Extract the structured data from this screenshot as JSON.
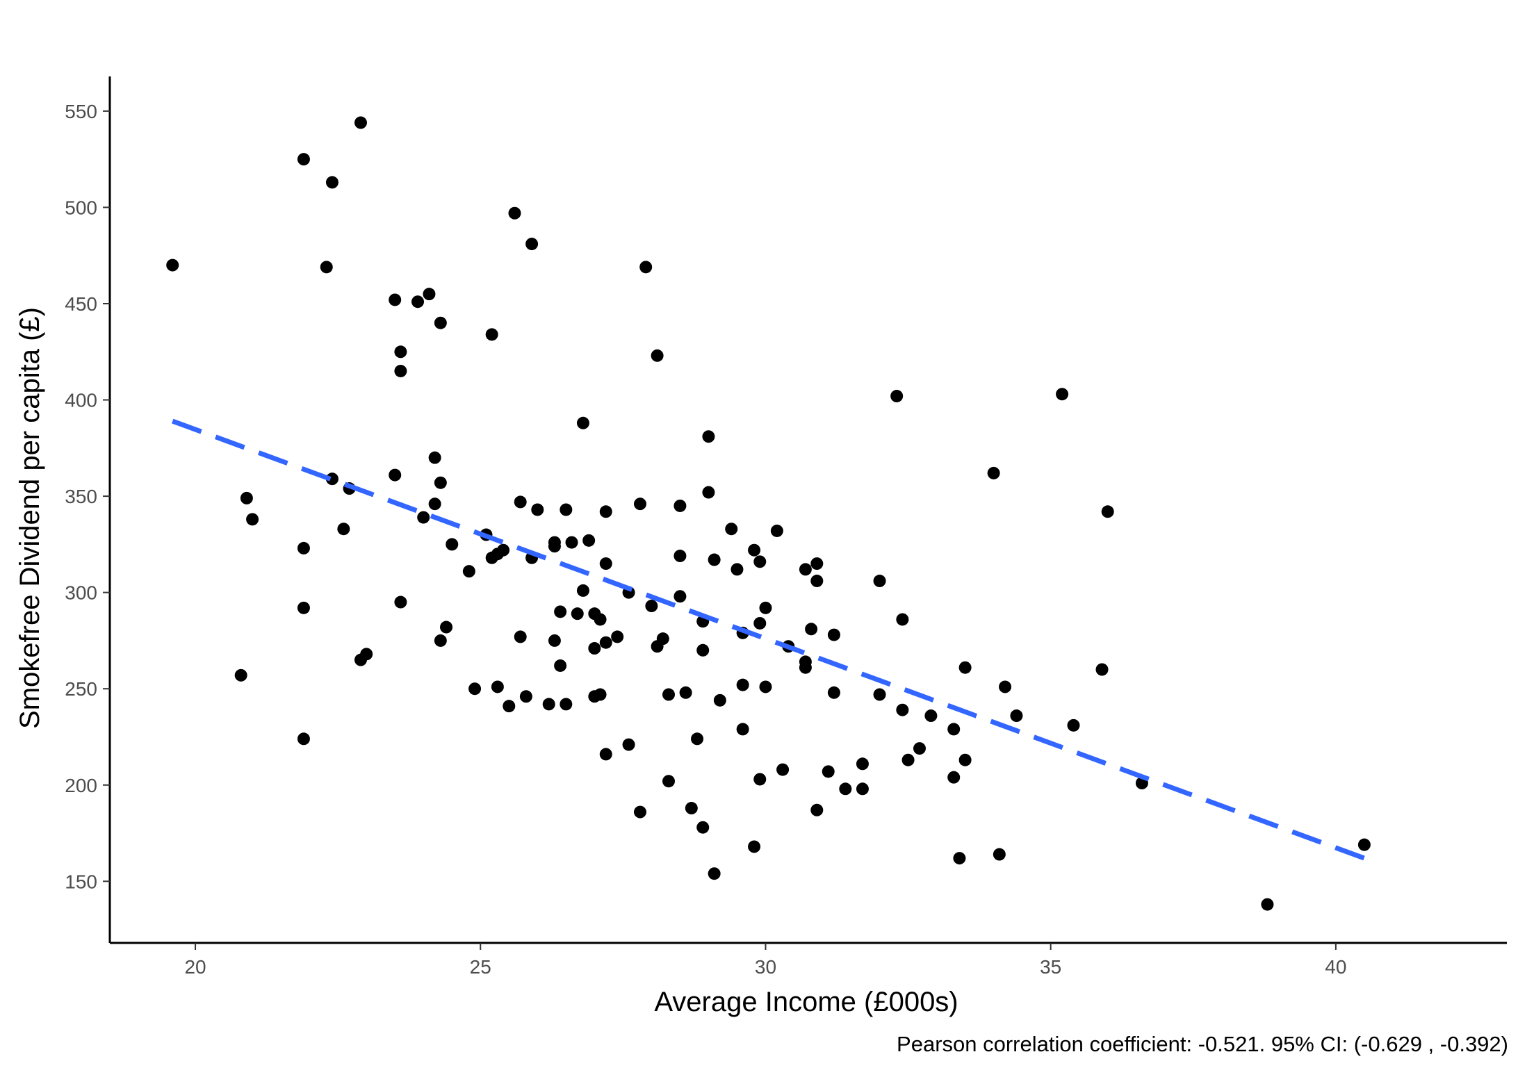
{
  "chart_data": {
    "type": "scatter",
    "title": "",
    "xlabel": "Average Income (£000s)",
    "ylabel": "Smokefree Dividend per capita (£)",
    "caption": "Pearson correlation coefficient: -0.521. 95% CI: (-0.629 , -0.392)",
    "xlim": [
      18.5,
      43
    ],
    "ylim": [
      118,
      568
    ],
    "xticks": [
      20,
      25,
      30,
      35,
      40
    ],
    "yticks": [
      150,
      200,
      250,
      300,
      350,
      400,
      450,
      500,
      550
    ],
    "grid": false,
    "legend": "none",
    "point_color": "#000000",
    "trend_color": "#3366FF",
    "trend_style": "dashed",
    "trend_line": {
      "x": [
        19.6,
        40.5
      ],
      "y": [
        389,
        162
      ]
    },
    "points": [
      {
        "x": 19.6,
        "y": 470
      },
      {
        "x": 20.8,
        "y": 257
      },
      {
        "x": 20.9,
        "y": 349
      },
      {
        "x": 21.0,
        "y": 338
      },
      {
        "x": 21.9,
        "y": 292
      },
      {
        "x": 21.9,
        "y": 224
      },
      {
        "x": 21.9,
        "y": 323
      },
      {
        "x": 21.9,
        "y": 525
      },
      {
        "x": 22.3,
        "y": 469
      },
      {
        "x": 22.4,
        "y": 359
      },
      {
        "x": 22.4,
        "y": 513
      },
      {
        "x": 22.6,
        "y": 333
      },
      {
        "x": 22.7,
        "y": 354
      },
      {
        "x": 22.9,
        "y": 265
      },
      {
        "x": 22.9,
        "y": 544
      },
      {
        "x": 23.0,
        "y": 268
      },
      {
        "x": 23.5,
        "y": 361
      },
      {
        "x": 23.5,
        "y": 452
      },
      {
        "x": 23.6,
        "y": 295
      },
      {
        "x": 23.6,
        "y": 425
      },
      {
        "x": 23.6,
        "y": 415
      },
      {
        "x": 23.9,
        "y": 451
      },
      {
        "x": 24.0,
        "y": 339
      },
      {
        "x": 24.1,
        "y": 455
      },
      {
        "x": 24.2,
        "y": 346
      },
      {
        "x": 24.2,
        "y": 370
      },
      {
        "x": 24.3,
        "y": 440
      },
      {
        "x": 24.3,
        "y": 357
      },
      {
        "x": 24.3,
        "y": 275
      },
      {
        "x": 24.4,
        "y": 282
      },
      {
        "x": 24.5,
        "y": 325
      },
      {
        "x": 24.8,
        "y": 311
      },
      {
        "x": 24.9,
        "y": 250
      },
      {
        "x": 25.1,
        "y": 330
      },
      {
        "x": 25.2,
        "y": 434
      },
      {
        "x": 25.2,
        "y": 318
      },
      {
        "x": 25.3,
        "y": 251
      },
      {
        "x": 25.3,
        "y": 320
      },
      {
        "x": 25.4,
        "y": 322
      },
      {
        "x": 25.5,
        "y": 241
      },
      {
        "x": 25.6,
        "y": 497
      },
      {
        "x": 25.7,
        "y": 277
      },
      {
        "x": 25.7,
        "y": 347
      },
      {
        "x": 25.8,
        "y": 246
      },
      {
        "x": 25.9,
        "y": 318
      },
      {
        "x": 25.9,
        "y": 481
      },
      {
        "x": 26.0,
        "y": 343
      },
      {
        "x": 26.2,
        "y": 242
      },
      {
        "x": 26.3,
        "y": 326
      },
      {
        "x": 26.3,
        "y": 324
      },
      {
        "x": 26.3,
        "y": 275
      },
      {
        "x": 26.4,
        "y": 290
      },
      {
        "x": 26.4,
        "y": 262
      },
      {
        "x": 26.5,
        "y": 242
      },
      {
        "x": 26.5,
        "y": 343
      },
      {
        "x": 26.6,
        "y": 326
      },
      {
        "x": 26.7,
        "y": 289
      },
      {
        "x": 26.8,
        "y": 301
      },
      {
        "x": 26.8,
        "y": 388
      },
      {
        "x": 26.9,
        "y": 327
      },
      {
        "x": 27.0,
        "y": 289
      },
      {
        "x": 27.0,
        "y": 271
      },
      {
        "x": 27.0,
        "y": 246
      },
      {
        "x": 27.1,
        "y": 286
      },
      {
        "x": 27.1,
        "y": 247
      },
      {
        "x": 27.2,
        "y": 342
      },
      {
        "x": 27.2,
        "y": 315
      },
      {
        "x": 27.2,
        "y": 274
      },
      {
        "x": 27.2,
        "y": 216
      },
      {
        "x": 27.4,
        "y": 277
      },
      {
        "x": 27.6,
        "y": 300
      },
      {
        "x": 27.6,
        "y": 221
      },
      {
        "x": 27.8,
        "y": 346
      },
      {
        "x": 27.8,
        "y": 186
      },
      {
        "x": 27.9,
        "y": 469
      },
      {
        "x": 28.0,
        "y": 293
      },
      {
        "x": 28.1,
        "y": 272
      },
      {
        "x": 28.1,
        "y": 423
      },
      {
        "x": 28.2,
        "y": 276
      },
      {
        "x": 28.3,
        "y": 202
      },
      {
        "x": 28.3,
        "y": 247
      },
      {
        "x": 28.5,
        "y": 345
      },
      {
        "x": 28.5,
        "y": 319
      },
      {
        "x": 28.5,
        "y": 298
      },
      {
        "x": 28.6,
        "y": 248
      },
      {
        "x": 28.7,
        "y": 188
      },
      {
        "x": 28.8,
        "y": 224
      },
      {
        "x": 28.9,
        "y": 178
      },
      {
        "x": 28.9,
        "y": 285
      },
      {
        "x": 28.9,
        "y": 270
      },
      {
        "x": 29.0,
        "y": 381
      },
      {
        "x": 29.0,
        "y": 352
      },
      {
        "x": 29.1,
        "y": 317
      },
      {
        "x": 29.1,
        "y": 154
      },
      {
        "x": 29.2,
        "y": 244
      },
      {
        "x": 29.4,
        "y": 333
      },
      {
        "x": 29.5,
        "y": 312
      },
      {
        "x": 29.6,
        "y": 229
      },
      {
        "x": 29.6,
        "y": 252
      },
      {
        "x": 29.6,
        "y": 279
      },
      {
        "x": 29.8,
        "y": 322
      },
      {
        "x": 29.9,
        "y": 316
      },
      {
        "x": 29.9,
        "y": 284
      },
      {
        "x": 29.9,
        "y": 203
      },
      {
        "x": 29.8,
        "y": 168
      },
      {
        "x": 30.0,
        "y": 292
      },
      {
        "x": 30.0,
        "y": 251
      },
      {
        "x": 30.2,
        "y": 332
      },
      {
        "x": 30.3,
        "y": 208
      },
      {
        "x": 30.4,
        "y": 272
      },
      {
        "x": 30.7,
        "y": 312
      },
      {
        "x": 30.7,
        "y": 261
      },
      {
        "x": 30.7,
        "y": 264
      },
      {
        "x": 30.8,
        "y": 281
      },
      {
        "x": 30.9,
        "y": 315
      },
      {
        "x": 30.9,
        "y": 306
      },
      {
        "x": 30.9,
        "y": 187
      },
      {
        "x": 31.1,
        "y": 207
      },
      {
        "x": 31.2,
        "y": 278
      },
      {
        "x": 31.2,
        "y": 248
      },
      {
        "x": 31.4,
        "y": 198
      },
      {
        "x": 31.7,
        "y": 211
      },
      {
        "x": 31.7,
        "y": 198
      },
      {
        "x": 32.0,
        "y": 247
      },
      {
        "x": 32.0,
        "y": 306
      },
      {
        "x": 32.3,
        "y": 402
      },
      {
        "x": 32.4,
        "y": 286
      },
      {
        "x": 32.4,
        "y": 239
      },
      {
        "x": 32.5,
        "y": 213
      },
      {
        "x": 32.7,
        "y": 219
      },
      {
        "x": 32.9,
        "y": 236
      },
      {
        "x": 33.3,
        "y": 229
      },
      {
        "x": 33.3,
        "y": 204
      },
      {
        "x": 33.4,
        "y": 162
      },
      {
        "x": 33.5,
        "y": 261
      },
      {
        "x": 33.5,
        "y": 213
      },
      {
        "x": 34.0,
        "y": 362
      },
      {
        "x": 34.1,
        "y": 164
      },
      {
        "x": 34.2,
        "y": 251
      },
      {
        "x": 34.4,
        "y": 236
      },
      {
        "x": 35.2,
        "y": 403
      },
      {
        "x": 35.4,
        "y": 231
      },
      {
        "x": 35.9,
        "y": 260
      },
      {
        "x": 36.0,
        "y": 342
      },
      {
        "x": 36.6,
        "y": 201
      },
      {
        "x": 38.8,
        "y": 138
      },
      {
        "x": 40.5,
        "y": 169
      }
    ]
  }
}
